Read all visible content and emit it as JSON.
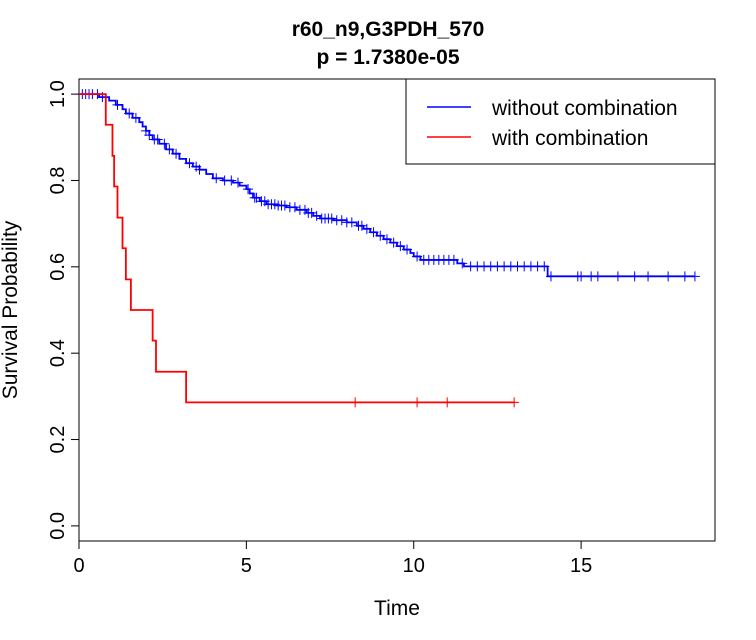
{
  "chart_data": {
    "type": "line",
    "subtype": "kaplan-meier",
    "title": "r60_n9,G3PDH_570",
    "subtitle": "p = 1.7380e-05",
    "xlabel": "Time",
    "ylabel": "Survival Probability",
    "xlim": [
      0,
      19
    ],
    "ylim": [
      -0.035,
      1.035
    ],
    "xticks": [
      0,
      5,
      10,
      15
    ],
    "yticks": [
      0.0,
      0.2,
      0.4,
      0.6,
      0.8,
      1.0
    ],
    "xtick_labels": [
      "0",
      "5",
      "10",
      "15"
    ],
    "ytick_labels": [
      "0.0",
      "0.2",
      "0.4",
      "0.6",
      "0.8",
      "1.0"
    ],
    "grid": false,
    "legend_position": "top-right",
    "series": [
      {
        "name": "without combination",
        "color": "#0000ff",
        "steps": [
          [
            0,
            1.0
          ],
          [
            0.6,
            0.993
          ],
          [
            0.9,
            0.985
          ],
          [
            1.1,
            0.975
          ],
          [
            1.3,
            0.965
          ],
          [
            1.4,
            0.955
          ],
          [
            1.6,
            0.945
          ],
          [
            1.8,
            0.935
          ],
          [
            1.9,
            0.925
          ],
          [
            2.0,
            0.915
          ],
          [
            2.1,
            0.905
          ],
          [
            2.2,
            0.895
          ],
          [
            2.4,
            0.885
          ],
          [
            2.6,
            0.872
          ],
          [
            2.8,
            0.862
          ],
          [
            3.0,
            0.85
          ],
          [
            3.2,
            0.84
          ],
          [
            3.4,
            0.832
          ],
          [
            3.6,
            0.825
          ],
          [
            3.8,
            0.815
          ],
          [
            4.0,
            0.805
          ],
          [
            4.3,
            0.8
          ],
          [
            4.6,
            0.795
          ],
          [
            4.8,
            0.788
          ],
          [
            5.0,
            0.78
          ],
          [
            5.1,
            0.77
          ],
          [
            5.2,
            0.76
          ],
          [
            5.4,
            0.752
          ],
          [
            5.6,
            0.745
          ],
          [
            5.9,
            0.742
          ],
          [
            6.2,
            0.738
          ],
          [
            6.5,
            0.732
          ],
          [
            6.8,
            0.725
          ],
          [
            7.0,
            0.718
          ],
          [
            7.2,
            0.712
          ],
          [
            7.6,
            0.708
          ],
          [
            8.0,
            0.703
          ],
          [
            8.3,
            0.695
          ],
          [
            8.5,
            0.688
          ],
          [
            8.7,
            0.68
          ],
          [
            8.9,
            0.672
          ],
          [
            9.1,
            0.664
          ],
          [
            9.3,
            0.656
          ],
          [
            9.5,
            0.648
          ],
          [
            9.7,
            0.64
          ],
          [
            9.9,
            0.632
          ],
          [
            10.0,
            0.624
          ],
          [
            10.2,
            0.616
          ],
          [
            11.3,
            0.608
          ],
          [
            11.5,
            0.601
          ],
          [
            14.0,
            0.578
          ]
        ],
        "end_x": 18.4,
        "censored_x": [
          0.1,
          0.2,
          0.3,
          0.4,
          0.55,
          0.7,
          1.15,
          1.5,
          1.7,
          2.0,
          2.1,
          2.25,
          2.35,
          2.55,
          2.7,
          2.9,
          3.3,
          3.5,
          3.6,
          4.1,
          4.35,
          4.55,
          4.75,
          5.05,
          5.25,
          5.3,
          5.45,
          5.55,
          5.65,
          5.75,
          5.85,
          5.95,
          6.05,
          6.15,
          6.3,
          6.45,
          6.6,
          6.75,
          6.85,
          6.95,
          7.1,
          7.25,
          7.35,
          7.45,
          7.55,
          7.7,
          7.85,
          8.0,
          8.15,
          8.35,
          8.45,
          8.6,
          8.8,
          9.0,
          9.2,
          9.4,
          9.6,
          9.8,
          10.1,
          10.3,
          10.45,
          10.6,
          10.75,
          10.9,
          11.05,
          11.2,
          11.45,
          11.7,
          11.9,
          12.1,
          12.3,
          12.5,
          12.7,
          12.9,
          13.1,
          13.3,
          13.5,
          13.7,
          13.9,
          14.1,
          14.9,
          15.0,
          15.3,
          15.5,
          16.1,
          16.6,
          17.0,
          17.6,
          18.1,
          18.4
        ]
      },
      {
        "name": "with combination",
        "color": "#ff0000",
        "steps": [
          [
            0,
            1.0
          ],
          [
            0.8,
            0.929
          ],
          [
            1.0,
            0.857
          ],
          [
            1.05,
            0.786
          ],
          [
            1.15,
            0.714
          ],
          [
            1.3,
            0.643
          ],
          [
            1.4,
            0.571
          ],
          [
            1.55,
            0.5
          ],
          [
            2.2,
            0.429
          ],
          [
            2.3,
            0.357
          ],
          [
            3.2,
            0.286
          ]
        ],
        "end_x": 13.0,
        "censored_x": [
          8.25,
          10.1,
          11.0,
          13.0
        ]
      }
    ]
  }
}
